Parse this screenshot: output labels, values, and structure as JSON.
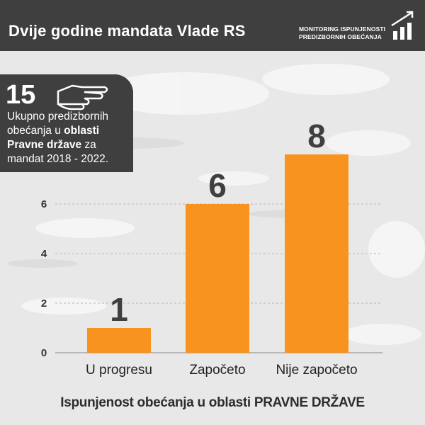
{
  "header": {
    "title": "Dvije godine mandata Vlade RS",
    "right_line1": "MONITORING ISPUNJENOSTI",
    "right_line2": "PREDIZBORNIH OBEĆANJA",
    "logo_icon": "bar-chart-up-icon"
  },
  "info_box": {
    "number": "15",
    "icon": "pointing-hand-icon",
    "text_line1": "Ukupno predizbornih",
    "text_line2a": "obećanja u ",
    "text_line2b": "oblasti",
    "text_line3a": "Pravne države",
    "text_line3b": " za",
    "text_line4": "mandat 2018 - 2022."
  },
  "footer_title": "Ispunjenost obećanja u oblasti PRAVNE DRŽAVE",
  "colors": {
    "bar": "#f7931e",
    "dark": "#3f3f3f",
    "background": "#e8e8e8"
  },
  "chart_data": {
    "type": "bar",
    "categories": [
      "U progresu",
      "Započeto",
      "Nije započeto"
    ],
    "values": [
      1,
      6,
      8
    ],
    "data_labels": [
      "1",
      "6",
      "8"
    ],
    "yticks": [
      "0",
      "2",
      "4",
      "6"
    ],
    "ylim": [
      0,
      8
    ],
    "grid": true,
    "xlabel": "",
    "ylabel": ""
  }
}
